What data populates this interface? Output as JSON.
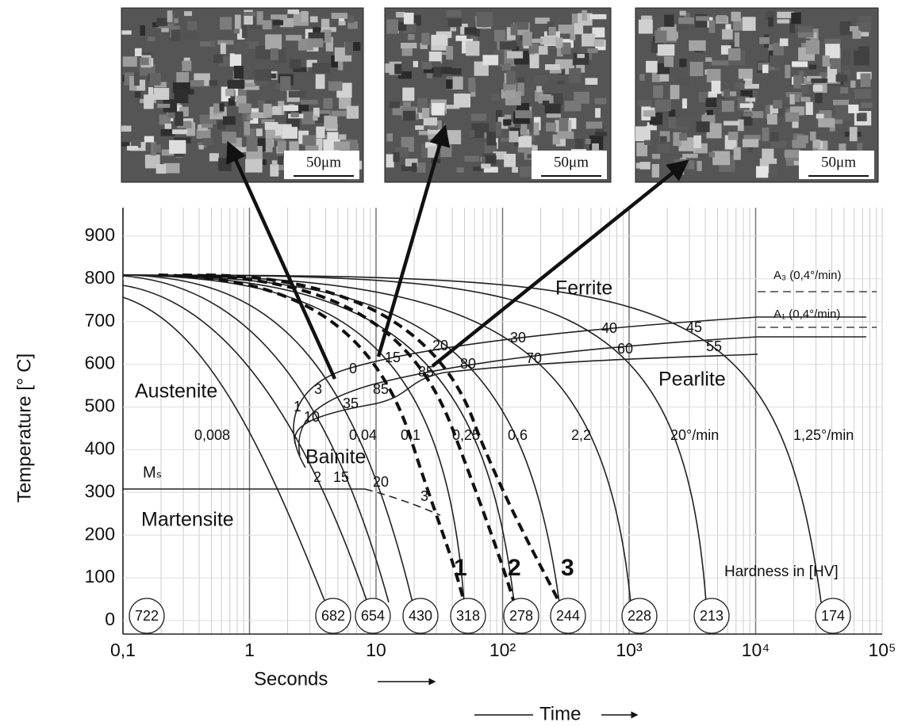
{
  "micrographs": [
    {
      "scale": "50μm"
    },
    {
      "scale": "50μm"
    },
    {
      "scale": "50μm"
    }
  ],
  "axes": {
    "y_label": "Temperature [° C]",
    "y_ticks": [
      "0",
      "100",
      "200",
      "300",
      "400",
      "500",
      "600",
      "700",
      "800",
      "900"
    ],
    "x_ticks": [
      "0,1",
      "1",
      "10",
      "10²",
      "10³",
      "10⁴",
      "10⁵"
    ],
    "x_label": "Seconds",
    "time_label": "Time"
  },
  "regions": {
    "austenite": "Austenite",
    "ferrite": "Ferrite",
    "pearlite": "Pearlite",
    "bainite": "Bainite",
    "martensite": "Martensite",
    "ms": "Mₛ",
    "a3": "A₃ (0,4°/min)",
    "a1": "A₁ (0,4°/min)"
  },
  "cooling_rates": [
    "0,008",
    "0,04",
    "0,1",
    "0,25",
    "0,6",
    "2,2",
    "20°/min",
    "1,25°/min"
  ],
  "curve_numbers": [
    "1",
    "2",
    "3"
  ],
  "hardness_title": "Hardness in [HV]",
  "hardness": [
    "722",
    "682",
    "654",
    "430",
    "318",
    "278",
    "244",
    "228",
    "213",
    "174"
  ],
  "fractions": [
    "3",
    "1",
    "10",
    "35",
    "2",
    "15",
    "20",
    "3",
    "0",
    "15",
    "20",
    "85",
    "85",
    "80",
    "30",
    "70",
    "40",
    "60",
    "45",
    "55"
  ]
}
